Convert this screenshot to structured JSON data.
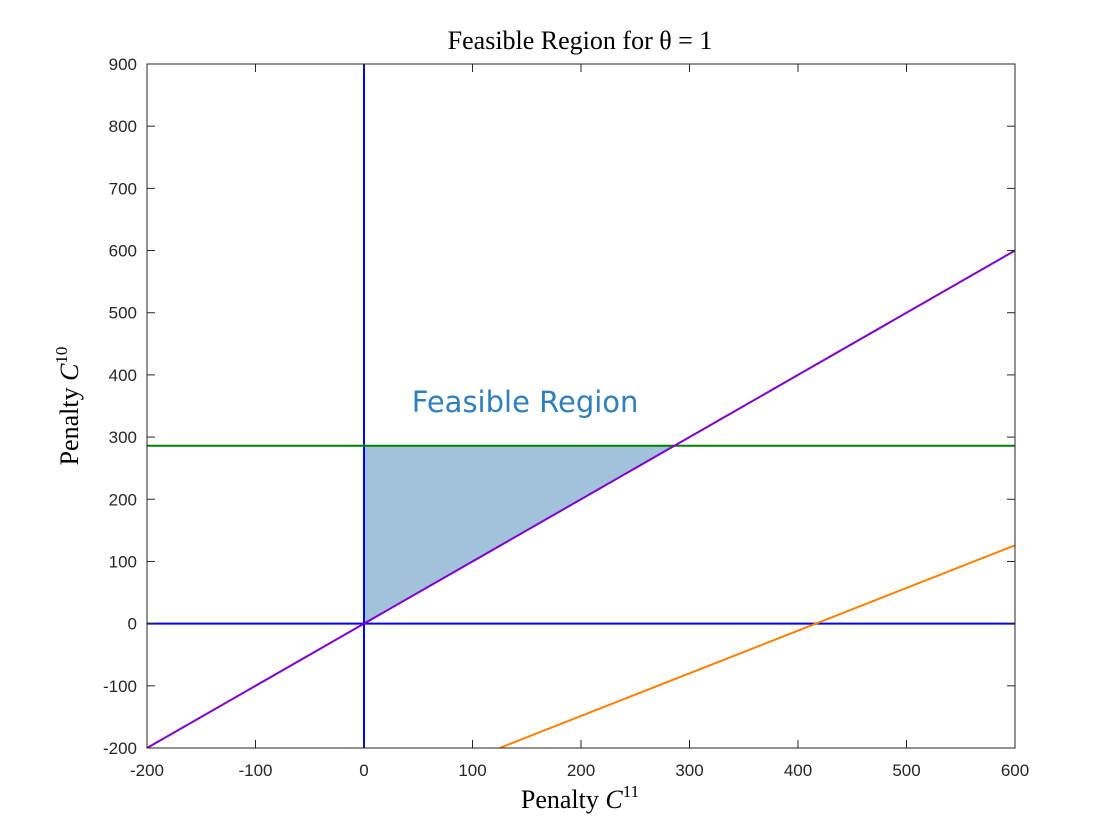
{
  "chart_data": {
    "type": "line",
    "title": "Feasible Region for θ = 1",
    "xlabel": {
      "text": "Penalty ",
      "var": "C",
      "sup": "11"
    },
    "ylabel": {
      "text": "Penalty ",
      "var": "C",
      "sup": "10"
    },
    "xlim": [
      -200,
      600
    ],
    "ylim": [
      -200,
      900
    ],
    "xticks": [
      -200,
      -100,
      0,
      100,
      200,
      300,
      400,
      500,
      600
    ],
    "yticks": [
      -200,
      -100,
      0,
      100,
      200,
      300,
      400,
      500,
      600,
      700,
      800,
      900
    ],
    "grid": false,
    "box": true,
    "series": [
      {
        "kind": "vline",
        "x": 0,
        "color": "#0000FF"
      },
      {
        "kind": "hline",
        "y": 0,
        "color": "#0000FF"
      },
      {
        "kind": "hline",
        "y": 286,
        "color": "#008000"
      },
      {
        "kind": "segment",
        "x": [
          -200,
          600
        ],
        "y": [
          -200,
          600
        ],
        "color": "#7E00C8"
      },
      {
        "kind": "segment",
        "x": [
          125,
          600
        ],
        "y": [
          -200,
          126
        ],
        "color": "#FF8000"
      }
    ],
    "region": {
      "vertices": [
        [
          0,
          0
        ],
        [
          0,
          286
        ],
        [
          286,
          286
        ]
      ],
      "color": "#A2C2DC"
    },
    "annotations": [
      {
        "text": "Feasible Region",
        "x": 44,
        "y": 340,
        "color": "#2F7EBD"
      }
    ]
  }
}
